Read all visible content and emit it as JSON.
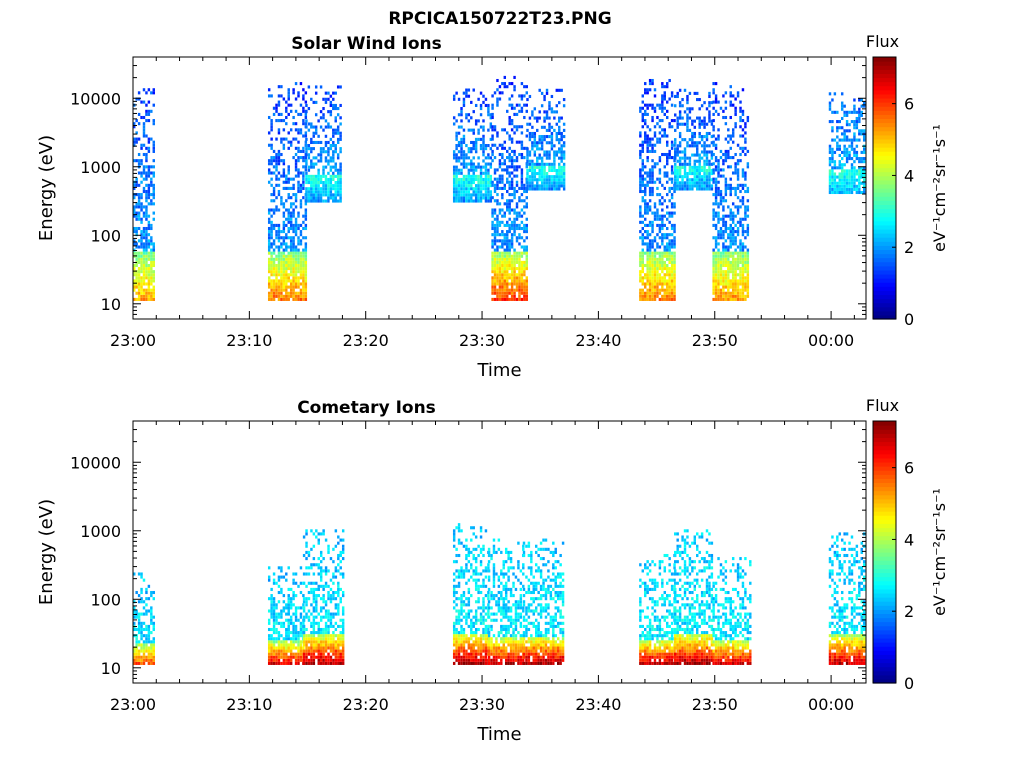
{
  "figure_title": "RPCICA150722T23.PNG",
  "chart_data": [
    {
      "type": "heatmap",
      "title": "Solar Wind Ions",
      "xlabel": "Time",
      "ylabel": "Energy (eV)",
      "x_tick_labels": [
        "23:00",
        "23:10",
        "23:20",
        "23:30",
        "23:40",
        "23:50",
        "00:00"
      ],
      "x_tick_minutes": [
        0,
        10,
        20,
        30,
        40,
        50,
        60
      ],
      "xlim_minutes": [
        0,
        63
      ],
      "y_scale": "log",
      "y_tick_labels": [
        "10",
        "100",
        "1000",
        "10000"
      ],
      "y_ticks": [
        10,
        100,
        1000,
        10000
      ],
      "ylim": [
        6,
        40000
      ],
      "colorbar": {
        "title": "Flux",
        "label": "eV⁻¹cm⁻²sr⁻¹s⁻¹",
        "ticks": [
          0,
          2,
          4,
          6
        ],
        "range": [
          0,
          7.3
        ],
        "colormap": "jet"
      },
      "bursts": [
        {
          "t_start": 0.0,
          "t_end": 1.8,
          "e_min": 11,
          "e_max": 14000,
          "low_flux": 5.2,
          "high_flux": 1.4
        },
        {
          "t_start": 11.6,
          "t_end": 14.8,
          "e_min": 11,
          "e_max": 16000,
          "low_flux": 5.5,
          "high_flux": 1.3
        },
        {
          "t_start": 14.8,
          "t_end": 17.8,
          "e_min": 300,
          "e_max": 14000,
          "low_flux": 2.0,
          "high_flux": 1.4
        },
        {
          "t_start": 27.5,
          "t_end": 30.8,
          "e_min": 300,
          "e_max": 13000,
          "low_flux": 2.0,
          "high_flux": 1.4
        },
        {
          "t_start": 30.8,
          "t_end": 33.8,
          "e_min": 11,
          "e_max": 20000,
          "low_flux": 6.0,
          "high_flux": 1.3
        },
        {
          "t_start": 33.8,
          "t_end": 37.0,
          "e_min": 450,
          "e_max": 13000,
          "low_flux": 2.0,
          "high_flux": 1.4
        },
        {
          "t_start": 43.5,
          "t_end": 46.5,
          "e_min": 11,
          "e_max": 18000,
          "low_flux": 5.5,
          "high_flux": 1.3
        },
        {
          "t_start": 46.5,
          "t_end": 49.8,
          "e_min": 450,
          "e_max": 13000,
          "low_flux": 2.0,
          "high_flux": 1.4
        },
        {
          "t_start": 49.8,
          "t_end": 52.8,
          "e_min": 11,
          "e_max": 16000,
          "low_flux": 5.3,
          "high_flux": 1.3
        },
        {
          "t_start": 59.8,
          "t_end": 62.8,
          "e_min": 400,
          "e_max": 12000,
          "low_flux": 2.2,
          "high_flux": 1.6
        }
      ]
    },
    {
      "type": "heatmap",
      "title": "Cometary Ions",
      "xlabel": "Time",
      "ylabel": "Energy (eV)",
      "x_tick_labels": [
        "23:00",
        "23:10",
        "23:20",
        "23:30",
        "23:40",
        "23:50",
        "00:00"
      ],
      "x_tick_minutes": [
        0,
        10,
        20,
        30,
        40,
        50,
        60
      ],
      "xlim_minutes": [
        0,
        63
      ],
      "y_scale": "log",
      "y_tick_labels": [
        "10",
        "100",
        "1000",
        "10000"
      ],
      "y_ticks": [
        10,
        100,
        1000,
        10000
      ],
      "ylim": [
        6,
        40000
      ],
      "colorbar": {
        "title": "Flux",
        "label": "eV⁻¹cm⁻²sr⁻¹s⁻¹",
        "ticks": [
          0,
          2,
          4,
          6
        ],
        "range": [
          0,
          7.3
        ],
        "colormap": "jet"
      },
      "bursts": [
        {
          "t_start": 0.0,
          "t_end": 1.8,
          "e_min": 11,
          "e_max": 250,
          "low_flux": 5.8,
          "high_flux": 2.3
        },
        {
          "t_start": 11.6,
          "t_end": 14.6,
          "e_min": 11,
          "e_max": 300,
          "low_flux": 6.6,
          "high_flux": 2.3
        },
        {
          "t_start": 14.6,
          "t_end": 18.0,
          "e_min": 11,
          "e_max": 1000,
          "low_flux": 7.0,
          "high_flux": 2.3
        },
        {
          "t_start": 27.5,
          "t_end": 30.5,
          "e_min": 11,
          "e_max": 1200,
          "low_flux": 7.0,
          "high_flux": 2.4
        },
        {
          "t_start": 30.5,
          "t_end": 33.5,
          "e_min": 11,
          "e_max": 700,
          "low_flux": 6.8,
          "high_flux": 2.4
        },
        {
          "t_start": 33.5,
          "t_end": 37.0,
          "e_min": 11,
          "e_max": 700,
          "low_flux": 7.0,
          "high_flux": 2.4
        },
        {
          "t_start": 43.5,
          "t_end": 46.5,
          "e_min": 11,
          "e_max": 450,
          "low_flux": 6.8,
          "high_flux": 2.4
        },
        {
          "t_start": 46.5,
          "t_end": 49.8,
          "e_min": 11,
          "e_max": 1000,
          "low_flux": 7.0,
          "high_flux": 2.4
        },
        {
          "t_start": 49.8,
          "t_end": 53.0,
          "e_min": 11,
          "e_max": 400,
          "low_flux": 6.6,
          "high_flux": 2.4
        },
        {
          "t_start": 59.8,
          "t_end": 62.8,
          "e_min": 11,
          "e_max": 900,
          "low_flux": 6.8,
          "high_flux": 2.3
        }
      ]
    }
  ]
}
